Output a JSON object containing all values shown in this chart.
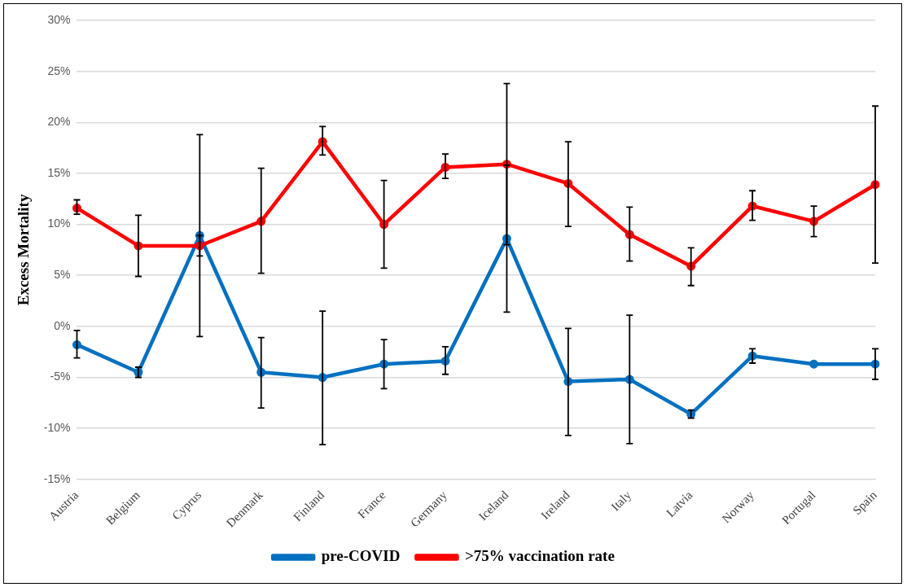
{
  "chart_data": {
    "type": "line",
    "ylabel": "Excess Mortality",
    "categories": [
      "Austria",
      "Belgium",
      "Cyprus",
      "Denmark",
      "Finland",
      "France",
      "Germany",
      "Iceland",
      "Ireland",
      "Italy",
      "Latvia",
      "Norway",
      "Portugal",
      "Spain"
    ],
    "series": [
      {
        "name": "pre-COVID",
        "color": "#0070c0",
        "values": [
          -1.8,
          -4.5,
          8.9,
          -4.5,
          -5.0,
          -3.7,
          -3.4,
          8.6,
          -5.4,
          -5.2,
          -8.6,
          -2.9,
          -3.7,
          -3.7
        ],
        "errors": [
          [
            -3.1,
            -0.4
          ],
          [
            -5.0,
            -4.0
          ],
          [
            -1.0,
            18.8
          ],
          [
            -8.0,
            -1.1
          ],
          [
            -11.6,
            1.5
          ],
          [
            -6.1,
            -1.3
          ],
          [
            -4.7,
            -2.0
          ],
          [
            1.4,
            15.8
          ],
          [
            -10.7,
            -0.2
          ],
          [
            -11.5,
            1.1
          ],
          [
            -9.0,
            -8.2
          ],
          [
            -3.6,
            -2.2
          ],
          null,
          [
            -5.2,
            -2.2
          ]
        ]
      },
      {
        "name": ">75% vaccination rate",
        "color": "#ff0000",
        "values": [
          11.6,
          7.9,
          7.9,
          10.3,
          18.1,
          10.0,
          15.6,
          15.9,
          14.0,
          9.0,
          5.9,
          11.8,
          10.3,
          13.9
        ],
        "errors": [
          [
            11.0,
            12.4
          ],
          [
            4.9,
            10.9
          ],
          [
            6.9,
            8.9
          ],
          [
            5.2,
            15.5
          ],
          [
            16.8,
            19.6
          ],
          [
            5.7,
            14.3
          ],
          [
            14.5,
            16.9
          ],
          [
            8.0,
            23.8
          ],
          [
            9.8,
            18.1
          ],
          [
            6.4,
            11.7
          ],
          [
            4.0,
            7.7
          ],
          [
            10.4,
            13.3
          ],
          [
            8.8,
            11.8
          ],
          [
            6.2,
            21.6
          ]
        ]
      }
    ],
    "ylim": [
      -15,
      30
    ],
    "yticks": [
      {
        "value": -15,
        "label": "-15%"
      },
      {
        "value": -10,
        "label": "-10%"
      },
      {
        "value": -5,
        "label": "-5%"
      },
      {
        "value": 0,
        "label": "0%"
      },
      {
        "value": 5,
        "label": "5%"
      },
      {
        "value": 10,
        "label": "10%"
      },
      {
        "value": 15,
        "label": "15%"
      },
      {
        "value": 20,
        "label": "20%"
      },
      {
        "value": 25,
        "label": "25%"
      },
      {
        "value": 30,
        "label": "30%"
      }
    ],
    "grid": "y",
    "legend": "bottom",
    "marker": "circle",
    "line_style": "solid"
  }
}
